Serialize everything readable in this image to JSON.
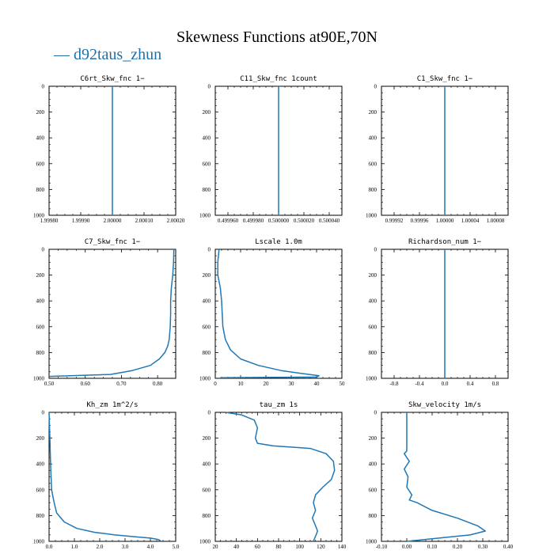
{
  "title": "Skewness Functions at90E,70N",
  "legend": {
    "label": "d92taus_zhun",
    "color": "#1f77b4"
  },
  "chart_data": [
    {
      "type": "line",
      "title": "C6rt_Skw_fnc   1−",
      "xlim": [
        1.9998,
        2.0002
      ],
      "ylim": [
        0,
        1000
      ],
      "y_inverted": true,
      "xticks": [
        1.9998,
        1.9999,
        2.0,
        2.0001,
        2.0002
      ],
      "xtick_labels": [
        "1.99980",
        "1.99990",
        "2.00000",
        "2.00010",
        "2.00020"
      ],
      "yticks": [
        0,
        200,
        400,
        600,
        800,
        1000
      ],
      "series": [
        {
          "name": "d92taus_zhun",
          "x": [
            2.0,
            2.0
          ],
          "y": [
            0,
            1000
          ]
        }
      ]
    },
    {
      "type": "line",
      "title": "C11_Skw_fnc   1count",
      "xlim": [
        0.49995,
        0.50005
      ],
      "ylim": [
        0,
        1000
      ],
      "y_inverted": true,
      "xticks": [
        0.49996,
        0.49998,
        0.5,
        0.50002,
        0.50004
      ],
      "xtick_labels": [
        "0.499960",
        "0.499980",
        "0.500000",
        "0.500020",
        "0.500040"
      ],
      "yticks": [
        0,
        200,
        400,
        600,
        800,
        1000
      ],
      "series": [
        {
          "name": "d92taus_zhun",
          "x": [
            0.5,
            0.5
          ],
          "y": [
            0,
            1000
          ]
        }
      ]
    },
    {
      "type": "line",
      "title": "C1_Skw_fnc   1−",
      "xlim": [
        0.9999,
        1.0001
      ],
      "ylim": [
        0,
        1000
      ],
      "y_inverted": true,
      "xticks": [
        0.99992,
        0.99996,
        1.0,
        1.00004,
        1.00008
      ],
      "xtick_labels": [
        "0.99992",
        "0.99996",
        "1.00000",
        "1.00004",
        "1.00008"
      ],
      "yticks": [
        0,
        200,
        400,
        600,
        800,
        1000
      ],
      "series": [
        {
          "name": "d92taus_zhun",
          "x": [
            1.0,
            1.0
          ],
          "y": [
            0,
            1000
          ]
        }
      ]
    },
    {
      "type": "line",
      "title": "C7_Skw_fnc   1−",
      "xlim": [
        0.5,
        0.85
      ],
      "ylim": [
        0,
        1000
      ],
      "y_inverted": true,
      "xticks": [
        0.5,
        0.6,
        0.7,
        0.8
      ],
      "xtick_labels": [
        "0.50",
        "0.60",
        "0.70",
        "0.80"
      ],
      "yticks": [
        0,
        200,
        400,
        600,
        800,
        1000
      ],
      "series": [
        {
          "name": "d92taus_zhun",
          "x": [
            0.845,
            0.844,
            0.842,
            0.838,
            0.836,
            0.836,
            0.835,
            0.832,
            0.828,
            0.82,
            0.805,
            0.78,
            0.73,
            0.67,
            0.5
          ],
          "y": [
            0,
            100,
            200,
            300,
            400,
            500,
            600,
            700,
            750,
            800,
            850,
            900,
            940,
            970,
            985
          ]
        }
      ]
    },
    {
      "type": "line",
      "title": "Lscale   1.0m",
      "xlim": [
        0,
        50
      ],
      "ylim": [
        0,
        1000
      ],
      "y_inverted": true,
      "xticks": [
        0,
        10,
        20,
        30,
        40,
        50
      ],
      "xtick_labels": [
        "0",
        "10",
        "20",
        "30",
        "40",
        "50"
      ],
      "yticks": [
        0,
        200,
        400,
        600,
        800,
        1000
      ],
      "series": [
        {
          "name": "d92taus_zhun",
          "x": [
            1.5,
            1.0,
            1.0,
            2.0,
            2.5,
            3.0,
            4.0,
            6.0,
            10.0,
            17.0,
            26.0,
            35.0,
            41.0,
            40.0,
            2.0
          ],
          "y": [
            0,
            100,
            200,
            300,
            400,
            600,
            700,
            780,
            850,
            900,
            940,
            965,
            980,
            990,
            995
          ]
        }
      ]
    },
    {
      "type": "line",
      "title": "Richardson_num   1−",
      "xlim": [
        -1.0,
        1.0
      ],
      "ylim": [
        0,
        1000
      ],
      "y_inverted": true,
      "xticks": [
        -0.8,
        -0.4,
        0.0,
        0.4,
        0.8
      ],
      "xtick_labels": [
        "-0.8",
        "-0.4",
        "0.0",
        "0.4",
        "0.8"
      ],
      "yticks": [
        0,
        200,
        400,
        600,
        800,
        1000
      ],
      "series": [
        {
          "name": "d92taus_zhun",
          "x": [
            0.0,
            0.0
          ],
          "y": [
            0,
            1000
          ]
        }
      ]
    },
    {
      "type": "line",
      "title": "Kh_zm   1m^2/s",
      "xlim": [
        0,
        5.0
      ],
      "ylim": [
        0,
        1000
      ],
      "y_inverted": true,
      "xticks": [
        0,
        1.0,
        2.0,
        3.0,
        4.0,
        5.0
      ],
      "xtick_labels": [
        "0.0",
        "1.0",
        "2.0",
        "3.0",
        "4.0",
        "5.0"
      ],
      "yticks": [
        0,
        200,
        400,
        600,
        800,
        1000
      ],
      "series": [
        {
          "name": "d92taus_zhun",
          "x": [
            0.0,
            0.03,
            0.06,
            0.1,
            0.2,
            0.3,
            0.6,
            1.1,
            1.8,
            2.6,
            3.4,
            4.0,
            4.3,
            4.4
          ],
          "y": [
            0,
            200,
            400,
            600,
            700,
            780,
            850,
            900,
            930,
            950,
            965,
            975,
            985,
            995
          ]
        }
      ]
    },
    {
      "type": "line",
      "title": "tau_zm   1s",
      "xlim": [
        20,
        140
      ],
      "ylim": [
        0,
        1000
      ],
      "y_inverted": true,
      "xticks": [
        20,
        40,
        60,
        80,
        100,
        120,
        140
      ],
      "xtick_labels": [
        "20",
        "40",
        "60",
        "80",
        "100",
        "120",
        "140"
      ],
      "yticks": [
        0,
        200,
        400,
        600,
        800,
        1000
      ],
      "series": [
        {
          "name": "d92taus_zhun",
          "x": [
            30,
            45,
            57,
            60,
            58,
            60,
            75,
            110,
            125,
            132,
            133,
            130,
            122,
            115,
            113,
            115,
            112,
            115,
            117,
            115,
            113
          ],
          "y": [
            0,
            20,
            60,
            120,
            200,
            240,
            260,
            280,
            320,
            380,
            450,
            520,
            580,
            640,
            700,
            760,
            820,
            880,
            920,
            960,
            1000
          ]
        }
      ]
    },
    {
      "type": "line",
      "title": "Skw_velocity   1m/s",
      "xlim": [
        -0.1,
        0.4
      ],
      "ylim": [
        0,
        1000
      ],
      "y_inverted": true,
      "xticks": [
        -0.1,
        0.0,
        0.1,
        0.2,
        0.3,
        0.4
      ],
      "xtick_labels": [
        "-0.10",
        "0.00",
        "0.10",
        "0.20",
        "0.30",
        "0.40"
      ],
      "yticks": [
        0,
        200,
        400,
        600,
        800,
        1000
      ],
      "series": [
        {
          "name": "d92taus_zhun",
          "x": [
            0.0,
            0.0,
            -0.01,
            0.01,
            -0.01,
            0.005,
            0.0,
            0.02,
            0.01,
            0.04,
            0.1,
            0.2,
            0.28,
            0.31,
            0.25,
            0.1,
            0.0
          ],
          "y": [
            0,
            300,
            320,
            380,
            440,
            500,
            580,
            640,
            680,
            700,
            760,
            820,
            880,
            920,
            950,
            980,
            1000
          ]
        }
      ]
    }
  ]
}
